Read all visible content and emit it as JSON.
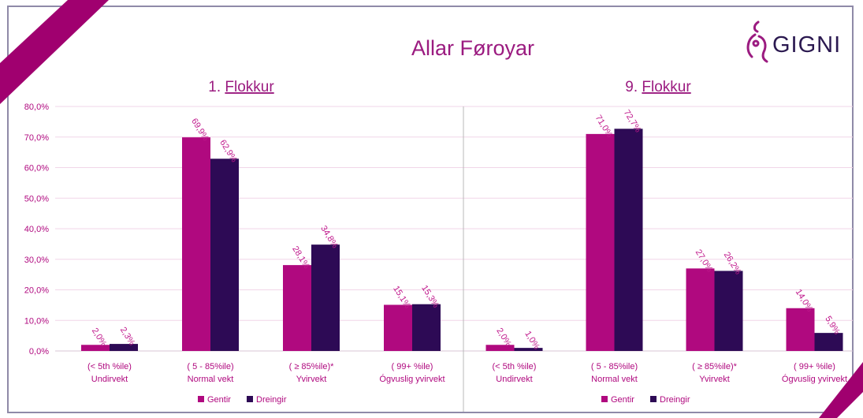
{
  "title": "Allar Føroyar",
  "brand": {
    "name": "GIGNI"
  },
  "colors": {
    "gentir": "#b0097f",
    "dreingir": "#2d0a55",
    "label": "#c0188c",
    "axis_text": "#b0097f",
    "corner": "#a0006f",
    "frame_border": "#8f8aa8",
    "gridline": "#f1d6e8",
    "divider": "#b9b9b9",
    "logo": "#9b1b80"
  },
  "legend": [
    "Gentir",
    "Dreingir"
  ],
  "chart_data": [
    {
      "type": "bar",
      "title_prefix": "1. ",
      "title_link": "Flokkur",
      "categories": [
        {
          "line1": "(< 5th %ile)",
          "line2": "Undirvekt"
        },
        {
          "line1": "( 5 - 85%ile)",
          "line2": "Normal vekt"
        },
        {
          "line1": "( ≥ 85%ile)*",
          "line2": "Yvirvekt"
        },
        {
          "line1": "( 99+ %ile)",
          "line2": "Ógvuslig yvirvekt"
        }
      ],
      "series": [
        {
          "name": "Gentir",
          "values": [
            2.0,
            69.9,
            28.1,
            15.1
          ],
          "labels": [
            "2,0%",
            "69,9%",
            "28,1%",
            "15,1%"
          ]
        },
        {
          "name": "Dreingir",
          "values": [
            2.3,
            62.9,
            34.8,
            15.3
          ],
          "labels": [
            "2,3%",
            "62,9%",
            "34,8%",
            "15,3%"
          ]
        }
      ],
      "ylim": [
        0,
        80
      ],
      "yticks": [
        "0,0%",
        "10,0%",
        "20,0%",
        "30,0%",
        "40,0%",
        "50,0%",
        "60,0%",
        "70,0%",
        "80,0%"
      ],
      "legend_position": "bottom-center"
    },
    {
      "type": "bar",
      "title_prefix": "9. ",
      "title_link": "Flokkur",
      "categories": [
        {
          "line1": "(< 5th %ile)",
          "line2": "Undirvekt"
        },
        {
          "line1": "( 5 - 85%ile)",
          "line2": "Normal vekt"
        },
        {
          "line1": "( ≥ 85%ile)*",
          "line2": "Yvirvekt"
        },
        {
          "line1": "( 99+ %ile)",
          "line2": "Ógvuslig yvirvekt"
        }
      ],
      "series": [
        {
          "name": "Gentir",
          "values": [
            2.0,
            71.0,
            27.0,
            14.0
          ],
          "labels": [
            "2,0%",
            "71,0%",
            "27,0%",
            "14,0%"
          ]
        },
        {
          "name": "Dreingir",
          "values": [
            1.0,
            72.7,
            26.2,
            5.9
          ],
          "labels": [
            "1,0%",
            "72,7%",
            "26,2%",
            "5,9%"
          ]
        }
      ],
      "ylim": [
        0,
        80
      ],
      "legend_position": "bottom-center"
    }
  ]
}
